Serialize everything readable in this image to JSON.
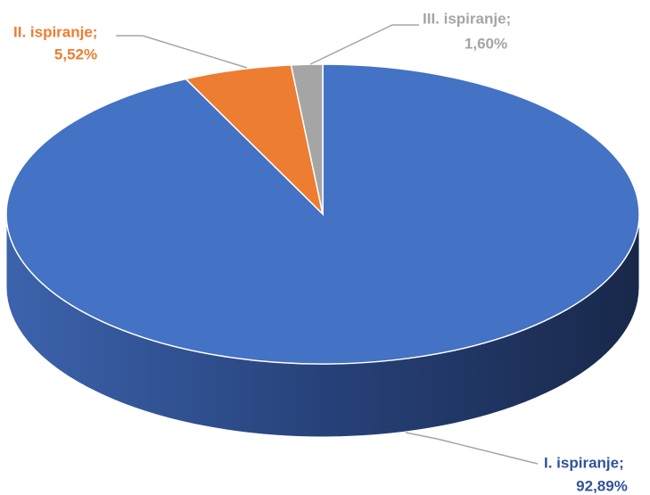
{
  "chart_data": {
    "type": "pie3d",
    "categories": [
      "I. ispiranje;",
      "II. ispiranje;",
      "III. ispiranje;"
    ],
    "values": [
      92.89,
      5.52,
      1.6
    ],
    "value_labels": [
      "92,89%",
      "5,52%",
      "1,60%"
    ],
    "colors": [
      "#4472c4",
      "#ed7d31",
      "#a5a5a5"
    ]
  }
}
